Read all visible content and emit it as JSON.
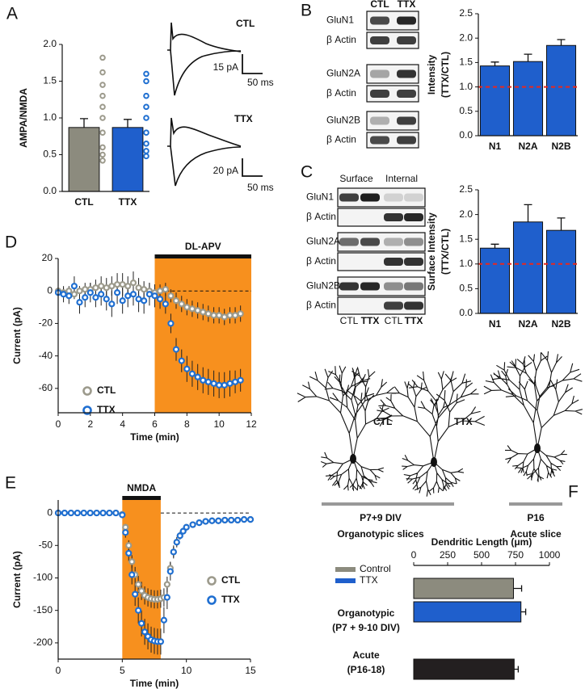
{
  "panels": [
    "A",
    "B",
    "C",
    "D",
    "E",
    "F"
  ],
  "panel_a_traces": {
    "labels": [
      "CTL",
      "TTX"
    ],
    "scale_bars": [
      [
        "15 pA",
        "50 ms"
      ],
      [
        "20 pA",
        "50 ms"
      ]
    ]
  },
  "blots_b": {
    "columns": [
      "CTL",
      "TTX"
    ],
    "rows": [
      "GluN1",
      "β Actin",
      "GluN2A",
      "β Actin",
      "GluN2B",
      "β Actin"
    ]
  },
  "blots_c": {
    "groups": [
      "Surface",
      "Internal"
    ],
    "columns": [
      "CTL",
      "TTX",
      "CTL",
      "TTX"
    ],
    "rows": [
      "GluN1",
      "β Actin",
      "GluN2A",
      "β Actin",
      "GluN2B",
      "β Actin"
    ]
  },
  "neurons": {
    "labels": [
      "CTL",
      "TTX"
    ],
    "groups": [
      {
        "age": "P7+9 DIV",
        "prep": "Organotypic slices"
      },
      {
        "age": "P16",
        "prep": "Acute slice"
      }
    ]
  },
  "chart_data": [
    {
      "type": "bar",
      "ylabel": [
        "AMPA/NMDA"
      ],
      "categories": [
        "CTL",
        "TTX"
      ],
      "values": [
        0.87,
        0.87
      ],
      "errors": [
        0.12,
        0.11
      ],
      "colors": [
        "#8c8b7e",
        "#1f5fcc"
      ],
      "points": [
        [
          1.82,
          1.62,
          1.45,
          1.3,
          1.15,
          1.0,
          0.8,
          0.6,
          0.5,
          0.42
        ],
        [
          1.6,
          1.5,
          1.3,
          1.15,
          1.0,
          0.8,
          0.65,
          0.55,
          0.48
        ]
      ],
      "point_colors": [
        "#9c9a8c",
        "#1f6fd1"
      ],
      "ylim": [
        0,
        2
      ],
      "yticks": [
        {
          "value": 0,
          "label": "0.0"
        },
        0.5,
        {
          "value": 1,
          "label": "1.0"
        },
        1.5,
        {
          "value": 2,
          "label": "2.0"
        }
      ]
    },
    {
      "type": "bar",
      "ylabel": [
        "Intensity",
        "(TTX/CTL)"
      ],
      "categories": [
        "N1",
        "N2A",
        "N2B"
      ],
      "values": [
        1.43,
        1.52,
        1.85
      ],
      "errors": [
        0.08,
        0.15,
        0.12
      ],
      "color": "#1f5fcc",
      "reference_line": 1,
      "reference_color": "#e8281e",
      "ylim": [
        0,
        2.5
      ],
      "yticks": [
        {
          "value": 0,
          "label": "0.0"
        },
        0.5,
        {
          "value": 1,
          "label": "1.0"
        },
        1.5,
        {
          "value": 2,
          "label": "2.0"
        },
        2.5
      ]
    },
    {
      "type": "bar",
      "ylabel": [
        "Surface Intensity",
        "(TTX/CTL)"
      ],
      "categories": [
        "N1",
        "N2A",
        "N2B"
      ],
      "values": [
        1.32,
        1.85,
        1.68
      ],
      "errors": [
        0.08,
        0.35,
        0.25
      ],
      "color": "#1f5fcc",
      "reference_line": 1,
      "reference_color": "#e8281e",
      "ylim": [
        0,
        2.5
      ],
      "yticks": [
        {
          "value": 0,
          "label": "0.0"
        },
        0.5,
        {
          "value": 1,
          "label": "1.0"
        },
        1.5,
        {
          "value": 2,
          "label": "2.0"
        },
        2.5
      ]
    },
    {
      "type": "scatter",
      "xlabel": "Time (min)",
      "ylabel": [
        "Current (pA)"
      ],
      "shade": [
        6,
        12
      ],
      "shade_color": "#f7901e",
      "shade_label": "DL-APV",
      "x": [
        0,
        0.33,
        0.67,
        1,
        1.33,
        1.67,
        2,
        2.33,
        2.67,
        3,
        3.33,
        3.67,
        4,
        4.33,
        4.67,
        5,
        5.33,
        5.67,
        6,
        6.33,
        6.67,
        7,
        7.33,
        7.67,
        8,
        8.33,
        8.67,
        9,
        9.33,
        9.67,
        10,
        10.33,
        10.67,
        11,
        11.33
      ],
      "series": [
        {
          "name": "CTL",
          "color": "#9c9a8c",
          "values": [
            0,
            -1,
            0,
            -2,
            0,
            1,
            1,
            2,
            3,
            2,
            3,
            4,
            4,
            3,
            5,
            2,
            1,
            0,
            -1,
            0,
            1,
            -3,
            -6,
            -8,
            -10,
            -11,
            -12,
            -13,
            -14,
            -15,
            -15,
            -16,
            -15,
            -15,
            -14
          ],
          "errors": [
            2,
            3,
            3,
            3,
            3,
            4,
            4,
            5,
            6,
            6,
            6,
            7,
            7,
            6,
            7,
            6,
            5,
            5,
            5,
            4,
            4,
            4,
            5,
            5,
            5,
            5,
            5,
            5,
            5,
            5,
            5,
            5,
            5,
            5,
            5
          ]
        },
        {
          "name": "TTX",
          "color": "#1f6fd1",
          "values": [
            -1,
            -2,
            -3,
            3,
            -7,
            -4,
            -1,
            -4,
            -2,
            -5,
            -8,
            -1,
            -6,
            -3,
            -2,
            -5,
            -6,
            -2,
            -3,
            -5,
            -8,
            -20,
            -36,
            -43,
            -48,
            -51,
            -53,
            -55,
            -56,
            -57,
            -58,
            -58,
            -57,
            -56,
            -55
          ],
          "errors": [
            4,
            5,
            5,
            6,
            7,
            6,
            6,
            6,
            7,
            7,
            8,
            7,
            8,
            7,
            7,
            8,
            8,
            7,
            7,
            6,
            6,
            6,
            7,
            7,
            8,
            8,
            8,
            8,
            8,
            8,
            8,
            8,
            8,
            7,
            7
          ]
        }
      ],
      "xlim": [
        0,
        12
      ],
      "xticks": [
        0,
        2,
        4,
        6,
        8,
        10,
        12
      ],
      "ylim": [
        -75,
        20
      ],
      "yticks": [
        20,
        0,
        -20,
        -40,
        -60
      ]
    },
    {
      "type": "scatter",
      "xlabel": "Time (min)",
      "ylabel": [
        "Current (pA)"
      ],
      "shade": [
        5,
        8
      ],
      "shade_color": "#f7901e",
      "shade_label": "NMDA",
      "x": [
        0,
        0.5,
        1,
        1.5,
        2,
        2.5,
        3,
        3.5,
        4,
        4.5,
        5,
        5.25,
        5.5,
        5.75,
        6,
        6.25,
        6.5,
        6.75,
        7,
        7.25,
        7.5,
        7.75,
        8,
        8.25,
        8.5,
        8.75,
        9,
        9.25,
        9.5,
        9.75,
        10,
        10.5,
        11,
        11.5,
        12,
        12.5,
        13,
        13.5,
        14,
        14.5,
        15
      ],
      "series": [
        {
          "name": "CTL",
          "color": "#9c9a8c",
          "values": [
            0,
            0,
            0,
            0,
            0,
            0,
            0,
            0,
            0,
            0,
            -2,
            -22,
            -50,
            -75,
            -95,
            -110,
            -120,
            -127,
            -130,
            -132,
            -133,
            -133,
            -132,
            -130,
            -110,
            -85,
            -60,
            -45,
            -35,
            -28,
            -22,
            -18,
            -15,
            -13,
            -12,
            -12,
            -11,
            -11,
            -11,
            -10,
            -10
          ],
          "errors": [
            1,
            1,
            1,
            1,
            1,
            1,
            1,
            1,
            1,
            1,
            2,
            5,
            8,
            10,
            12,
            13,
            14,
            14,
            14,
            14,
            14,
            14,
            14,
            14,
            12,
            10,
            8,
            6,
            5,
            4,
            4,
            3,
            3,
            3,
            3,
            3,
            3,
            3,
            3,
            3,
            3
          ]
        },
        {
          "name": "TTX",
          "color": "#1f6fd1",
          "values": [
            0,
            0,
            0,
            0,
            0,
            0,
            0,
            0,
            0,
            0,
            -3,
            -30,
            -62,
            -95,
            -125,
            -150,
            -170,
            -183,
            -190,
            -195,
            -197,
            -198,
            -198,
            -165,
            -130,
            -90,
            -60,
            -45,
            -35,
            -28,
            -22,
            -18,
            -15,
            -13,
            -12,
            -12,
            -11,
            -11,
            -11,
            -10,
            -10
          ],
          "errors": [
            1,
            1,
            1,
            1,
            1,
            1,
            1,
            1,
            1,
            1,
            3,
            8,
            12,
            15,
            18,
            20,
            20,
            20,
            20,
            20,
            20,
            20,
            20,
            20,
            18,
            14,
            10,
            8,
            6,
            5,
            4,
            3,
            3,
            3,
            3,
            3,
            3,
            3,
            3,
            3,
            3
          ]
        }
      ],
      "xlim": [
        0,
        15
      ],
      "xticks": [
        0,
        5,
        10,
        15
      ],
      "ylim": [
        -225,
        20
      ],
      "yticks": [
        0,
        -50,
        -100,
        -150,
        -200
      ]
    },
    {
      "type": "hbar",
      "xlabel": "Dendritic Length (μm)",
      "categories": [
        [
          "Organotypic",
          "(P7 + 9-10 DIV)"
        ],
        [
          "Acute",
          "(P16-18)"
        ]
      ],
      "series": [
        {
          "name": "Control",
          "color": "#8c8b7e",
          "values": [
            735,
            null
          ],
          "errors": [
            60,
            null
          ]
        },
        {
          "name": "TTX",
          "color": "#1f5fcc",
          "values": [
            790,
            null
          ],
          "errors": [
            35,
            null
          ]
        },
        {
          "color": "#231f20",
          "values": [
            null,
            740
          ],
          "errors": [
            null,
            30
          ]
        }
      ],
      "xlim": [
        0,
        1000
      ],
      "xticks": [
        0,
        250,
        500,
        750,
        1000
      ]
    }
  ]
}
